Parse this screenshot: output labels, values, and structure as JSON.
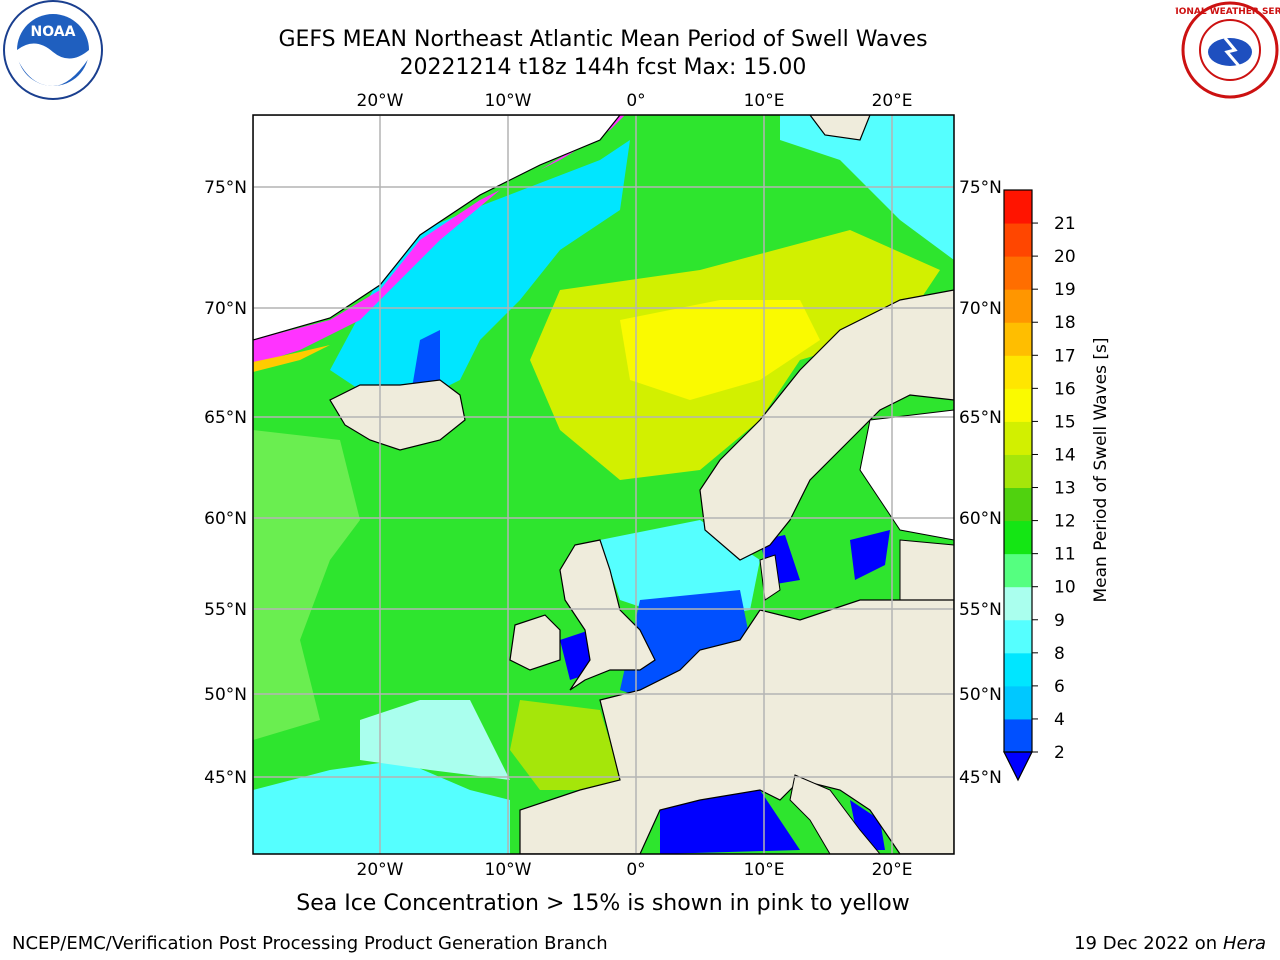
{
  "header": {
    "title_line1": "GEFS MEAN Northeast Atlantic Mean Period of Swell Waves",
    "title_line2": "20221214 t18z 144h fcst   Max: 15.00"
  },
  "map": {
    "lon_labels": [
      "20°W",
      "10°W",
      "0°",
      "10°E",
      "20°E"
    ],
    "lat_labels": [
      "75°N",
      "70°N",
      "65°N",
      "60°N",
      "55°N",
      "50°N",
      "45°N"
    ],
    "colors": {
      "land": "#efecdc",
      "grid": "#b4b4b4",
      "sea_ice_low": "#ff33ff",
      "sea_ice_high": "#ffcc00"
    }
  },
  "colorbar": {
    "label": "Mean Period of Swell Waves [s]",
    "ticks": [
      "2",
      "4",
      "6",
      "8",
      "9",
      "10",
      "11",
      "12",
      "13",
      "14",
      "15",
      "16",
      "17",
      "18",
      "19",
      "20",
      "21"
    ],
    "colors": [
      "#0050ff",
      "#00c8ff",
      "#00e6ff",
      "#55ffff",
      "#aaffee",
      "#55ff80",
      "#14e614",
      "#50d20f",
      "#a5e60a",
      "#d2f000",
      "#fafa00",
      "#ffe600",
      "#ffbe00",
      "#ff9600",
      "#ff6e00",
      "#ff4600",
      "#ff1400"
    ],
    "under_color": "#0000ff"
  },
  "footer": {
    "note": "Sea Ice Concentration > 15% is shown in pink to yellow",
    "branch": "NCEP/EMC/Verification Post Processing Product Generation Branch",
    "date": "19 Dec 2022 on",
    "host": "Hera"
  },
  "logos": {
    "noaa_text": "NOAA",
    "nws_text": "NATIONAL WEATHER SERVICE"
  }
}
